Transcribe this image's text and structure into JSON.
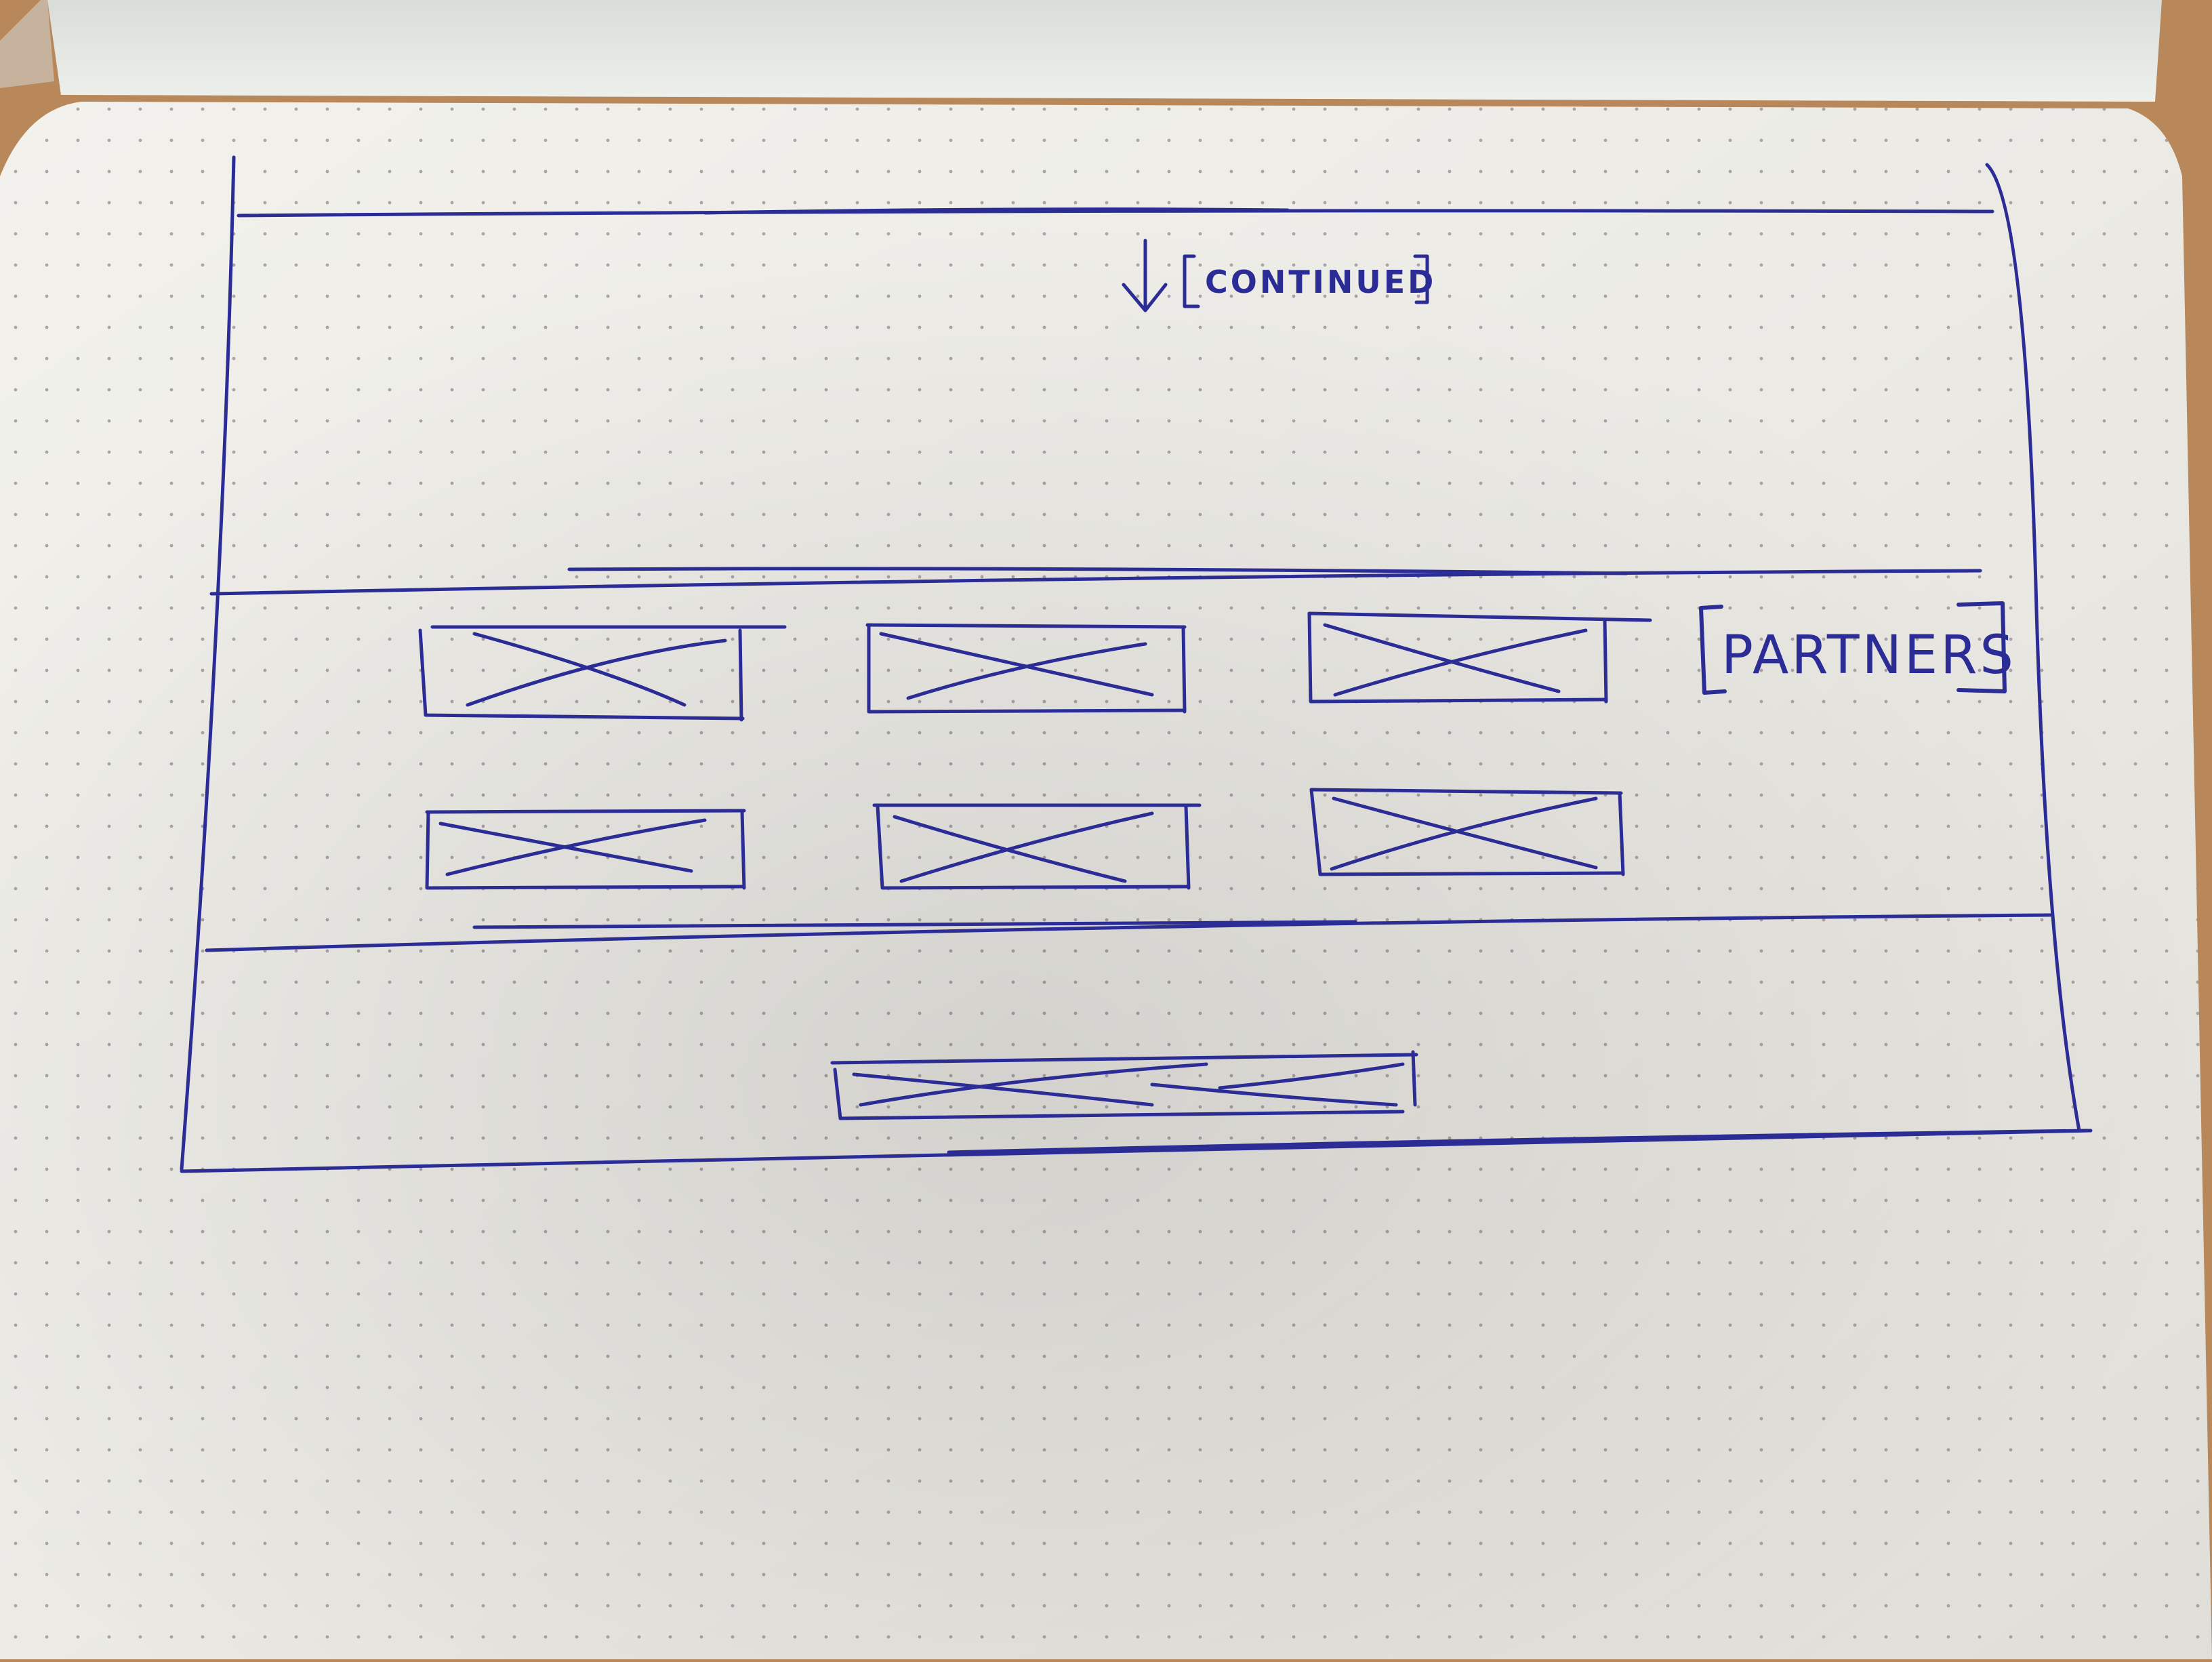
{
  "sketch": {
    "continued_label": "CONTINUED",
    "partners_label": "PARTNERS"
  },
  "colors": {
    "ink": "#2c2c96",
    "paper": "#f3f2ee",
    "desk": "#b8875a"
  },
  "sections": [
    {
      "name": "continued-section"
    },
    {
      "name": "partners-section",
      "logo_placeholders": 6
    },
    {
      "name": "footer-section",
      "placeholders": 1
    }
  ]
}
